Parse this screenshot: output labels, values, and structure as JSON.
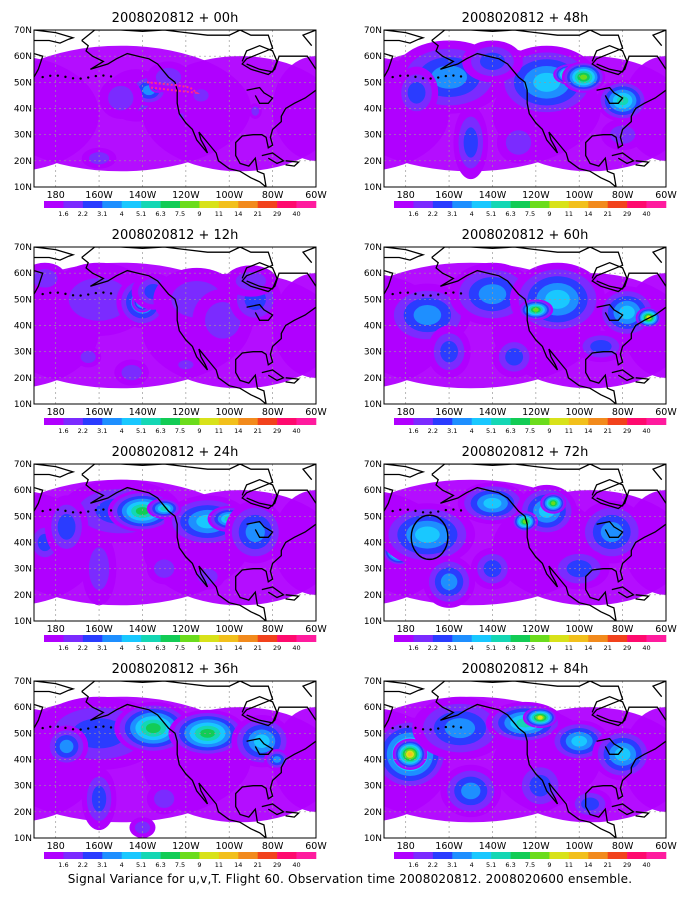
{
  "caption": "Signal Variance for u,v,T. Flight 60. Observation time 2008020812. 2008020600 ensemble.",
  "chart_data": {
    "type": "heatmap",
    "panel_count": 8,
    "lat_ticks": [
      "10N",
      "20N",
      "30N",
      "40N",
      "50N",
      "60N",
      "70N"
    ],
    "lon_ticks": [
      "180",
      "160W",
      "140W",
      "120W",
      "100W",
      "80W",
      "60W"
    ],
    "lat_range": [
      10,
      70
    ],
    "lon_range": [
      -190,
      -60
    ],
    "grid": true,
    "colorbar": {
      "levels": [
        "1.6",
        "2.2",
        "3.1",
        "4",
        "5.1",
        "6.3",
        "7.5",
        "9",
        "11",
        "14",
        "21",
        "29",
        "40"
      ],
      "colors": [
        "#b000ff",
        "#7b2bff",
        "#2a3cff",
        "#1e8fff",
        "#19c8ff",
        "#14d7b4",
        "#12cc55",
        "#6bdc1c",
        "#d8e21a",
        "#f2c01c",
        "#f28a1c",
        "#f2421c",
        "#ff0a6e",
        "#ff1b9e"
      ]
    },
    "panels": [
      {
        "title": "2008020812 + 00h",
        "blobs": [
          [
            -143,
            45,
            14,
            10,
            1
          ],
          [
            -137,
            47,
            9,
            6,
            3
          ],
          [
            -133,
            49,
            4,
            3,
            6
          ],
          [
            -150,
            44,
            10,
            8,
            1
          ],
          [
            -128,
            52,
            10,
            6,
            1
          ],
          [
            -160,
            21,
            8,
            4,
            1
          ],
          [
            -113,
            45,
            6,
            4,
            1
          ],
          [
            -88,
            39,
            3,
            3,
            1
          ],
          [
            -122,
            37,
            2,
            2,
            1
          ]
        ],
        "flight_track": [
          [
            -138,
            50
          ],
          [
            -125,
            49
          ],
          [
            -118,
            48
          ],
          [
            -115,
            46
          ],
          [
            -126,
            47
          ],
          [
            -136,
            48
          ]
        ]
      },
      {
        "title": "2008020812 + 12h",
        "blobs": [
          [
            -160,
            50,
            24,
            14,
            1
          ],
          [
            -140,
            49,
            12,
            10,
            4
          ],
          [
            -140,
            49,
            5,
            4,
            6
          ],
          [
            -135,
            53,
            10,
            7,
            2
          ],
          [
            -115,
            50,
            20,
            12,
            1
          ],
          [
            -103,
            42,
            14,
            12,
            1
          ],
          [
            -88,
            50,
            12,
            10,
            2
          ],
          [
            -165,
            28,
            6,
            4,
            1
          ],
          [
            -145,
            22,
            8,
            5,
            1
          ],
          [
            -120,
            25,
            6,
            3,
            1
          ],
          [
            -90,
            57,
            12,
            6,
            1
          ],
          [
            -185,
            58,
            10,
            6,
            1
          ]
        ]
      },
      {
        "title": "2008020812 + 24h",
        "blobs": [
          [
            -150,
            52,
            28,
            12,
            2
          ],
          [
            -140,
            52,
            16,
            8,
            6
          ],
          [
            -110,
            48,
            20,
            10,
            4
          ],
          [
            -100,
            49,
            10,
            5,
            5
          ],
          [
            -88,
            44,
            14,
            12,
            3
          ],
          [
            -130,
            53,
            8,
            4,
            5
          ],
          [
            -185,
            40,
            8,
            8,
            2
          ],
          [
            -175,
            46,
            10,
            12,
            2
          ],
          [
            -160,
            30,
            8,
            14,
            1
          ],
          [
            -130,
            30,
            8,
            6,
            1
          ],
          [
            -110,
            27,
            8,
            5,
            1
          ]
        ]
      },
      {
        "title": "2008020812 + 36h",
        "blobs": [
          [
            -160,
            50,
            30,
            14,
            2
          ],
          [
            -135,
            52,
            18,
            10,
            6
          ],
          [
            -118,
            53,
            6,
            3,
            8
          ],
          [
            -105,
            52,
            8,
            5,
            8
          ],
          [
            -110,
            50,
            18,
            9,
            6
          ],
          [
            -85,
            47,
            14,
            10,
            4
          ],
          [
            -78,
            40,
            6,
            4,
            3
          ],
          [
            -175,
            45,
            10,
            8,
            3
          ],
          [
            -160,
            25,
            8,
            12,
            2
          ],
          [
            -130,
            25,
            8,
            6,
            1
          ],
          [
            -140,
            14,
            6,
            4,
            1
          ]
        ]
      },
      {
        "title": "2008020812 + 48h",
        "blobs": [
          [
            -160,
            52,
            26,
            14,
            3
          ],
          [
            -115,
            50,
            24,
            14,
            4
          ],
          [
            -104,
            53,
            8,
            4,
            9
          ],
          [
            -98,
            52,
            10,
            6,
            7
          ],
          [
            -80,
            43,
            12,
            8,
            5
          ],
          [
            -140,
            58,
            14,
            8,
            2
          ],
          [
            -175,
            46,
            10,
            10,
            2
          ],
          [
            -150,
            27,
            8,
            14,
            2
          ],
          [
            -128,
            27,
            10,
            8,
            1
          ],
          [
            -80,
            30,
            10,
            6,
            1
          ]
        ]
      },
      {
        "title": "2008020812 + 60h",
        "blobs": [
          [
            -170,
            44,
            20,
            12,
            3
          ],
          [
            -140,
            52,
            20,
            12,
            3
          ],
          [
            -110,
            50,
            22,
            14,
            4
          ],
          [
            -120,
            46,
            8,
            4,
            7
          ],
          [
            -78,
            45,
            14,
            10,
            4
          ],
          [
            -68,
            43,
            6,
            4,
            8
          ],
          [
            -90,
            32,
            12,
            6,
            2
          ],
          [
            -160,
            30,
            10,
            10,
            2
          ],
          [
            -130,
            28,
            10,
            8,
            2
          ]
        ]
      },
      {
        "title": "2008020812 + 72h",
        "blobs": [
          [
            -183,
            37,
            8,
            6,
            8
          ],
          [
            -170,
            43,
            22,
            12,
            4
          ],
          [
            -140,
            55,
            16,
            8,
            4
          ],
          [
            -115,
            52,
            14,
            10,
            4
          ],
          [
            -112,
            55,
            6,
            4,
            7
          ],
          [
            -125,
            48,
            6,
            4,
            7
          ],
          [
            -85,
            44,
            16,
            12,
            3
          ],
          [
            -100,
            30,
            14,
            8,
            2
          ],
          [
            -160,
            25,
            12,
            10,
            3
          ],
          [
            -140,
            30,
            10,
            8,
            2
          ]
        ],
        "circle": [
          -169,
          42,
          6.5
        ]
      },
      {
        "title": "2008020812 + 84h",
        "blobs": [
          [
            -178,
            42,
            18,
            14,
            6
          ],
          [
            -178,
            42,
            8,
            6,
            9
          ],
          [
            -155,
            52,
            22,
            12,
            3
          ],
          [
            -125,
            54,
            18,
            8,
            5
          ],
          [
            -118,
            56,
            8,
            4,
            8
          ],
          [
            -100,
            47,
            14,
            8,
            4
          ],
          [
            -80,
            42,
            14,
            10,
            4
          ],
          [
            -150,
            28,
            14,
            10,
            3
          ],
          [
            -118,
            30,
            12,
            10,
            2
          ],
          [
            -95,
            23,
            10,
            6,
            2
          ]
        ]
      }
    ]
  }
}
